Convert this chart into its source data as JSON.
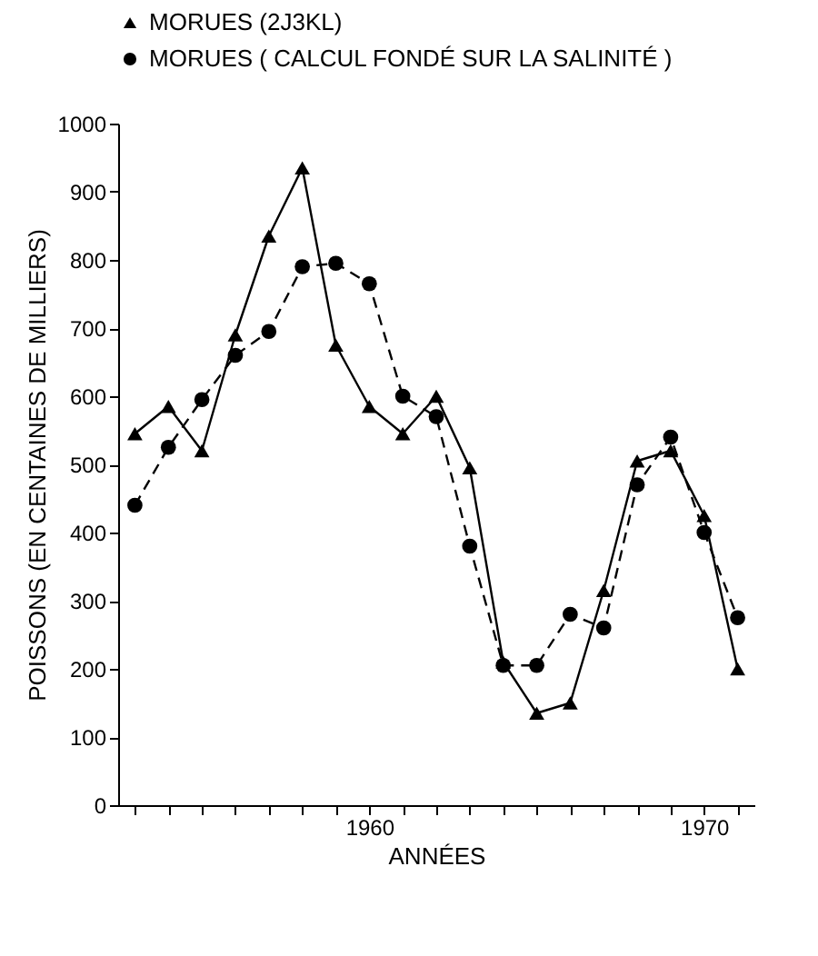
{
  "chart_data": {
    "type": "line",
    "xlabel": "ANNÉES",
    "ylabel": "POISSONS (EN CENTAINES DE MILLIERS)",
    "x": [
      1953,
      1954,
      1955,
      1956,
      1957,
      1958,
      1959,
      1960,
      1961,
      1962,
      1963,
      1964,
      1965,
      1966,
      1967,
      1968,
      1969,
      1970,
      1971
    ],
    "series": [
      {
        "name": "MORUES (2J3KL)",
        "color": "#000000",
        "marker": "triangle",
        "line_style": "solid",
        "values": [
          545,
          585,
          520,
          690,
          835,
          935,
          675,
          585,
          545,
          600,
          495,
          210,
          135,
          150,
          315,
          505,
          520,
          425,
          200
        ]
      },
      {
        "name": "MORUES ( CALCUL FONDÉ SUR LA SALINITÉ )",
        "color": "#000000",
        "marker": "circle",
        "line_style": "dashed",
        "values": [
          440,
          525,
          595,
          660,
          695,
          790,
          795,
          765,
          600,
          570,
          380,
          205,
          205,
          280,
          260,
          470,
          540,
          400,
          275
        ]
      }
    ],
    "xlim": [
      1952.5,
      1971.5
    ],
    "xticks": [
      {
        "value": 1953,
        "label": null
      },
      {
        "value": 1954,
        "label": null
      },
      {
        "value": 1955,
        "label": null
      },
      {
        "value": 1956,
        "label": null
      },
      {
        "value": 1957,
        "label": null
      },
      {
        "value": 1958,
        "label": null
      },
      {
        "value": 1959,
        "label": null
      },
      1960,
      {
        "value": 1961,
        "label": null
      },
      {
        "value": 1962,
        "label": null
      },
      {
        "value": 1963,
        "label": null
      },
      {
        "value": 1964,
        "label": null
      },
      {
        "value": 1965,
        "label": null
      },
      {
        "value": 1966,
        "label": null
      },
      {
        "value": 1967,
        "label": null
      },
      {
        "value": 1968,
        "label": null
      },
      {
        "value": 1969,
        "label": null
      },
      1970,
      {
        "value": 1971,
        "label": null
      }
    ],
    "ylim": [
      0,
      1000
    ],
    "yticks": [
      0,
      100,
      200,
      300,
      400,
      500,
      600,
      700,
      800,
      900,
      1000
    ],
    "grid": false,
    "legend": "top left"
  }
}
